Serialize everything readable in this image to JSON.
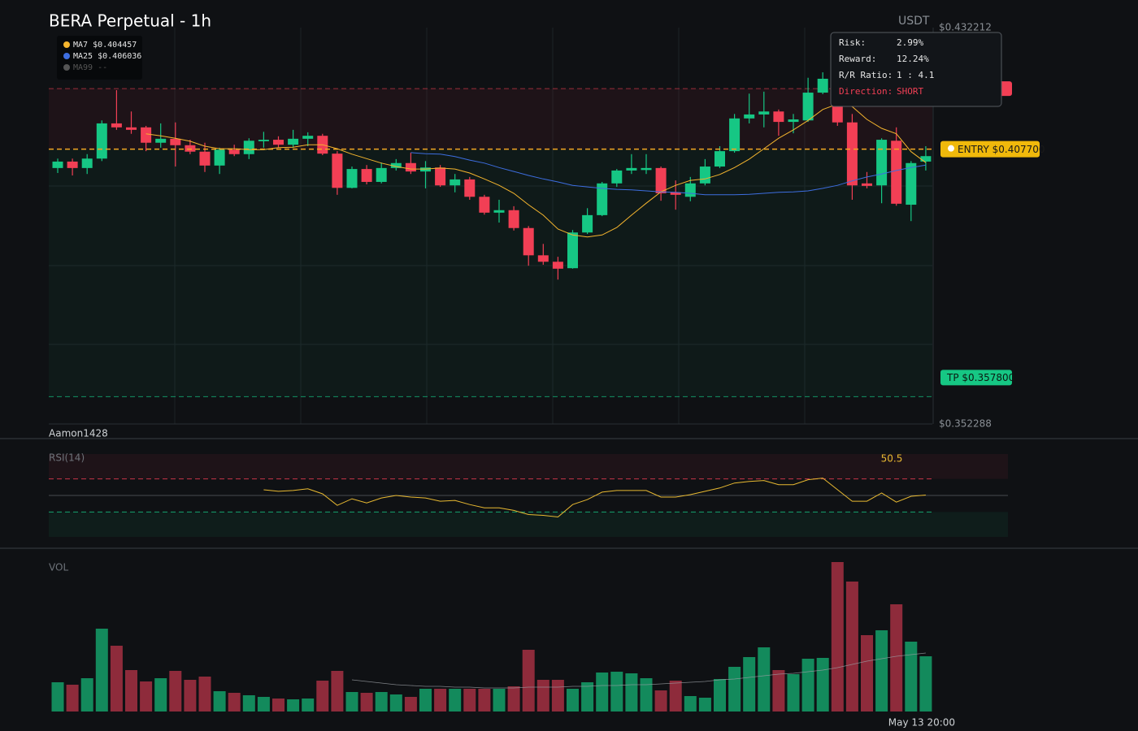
{
  "chart_data": [
    {
      "type": "candlestick",
      "title": "BERA Perpetual - 1h",
      "unit": "USDT",
      "watermark": "Aamon1428",
      "ylim": [
        0.352288,
        0.432212
      ],
      "yticks": [
        {
          "value": 0.432212,
          "label": "$0.432212"
        },
        {
          "value": 0.352288,
          "label": "$0.352288"
        }
      ],
      "up_color": "#16c784",
      "down_color": "#f23f55",
      "ohlc": [
        [
          0.4039,
          0.4058,
          0.4029,
          0.4052
        ],
        [
          0.4052,
          0.4058,
          0.4024,
          0.4039
        ],
        [
          0.4039,
          0.4067,
          0.4027,
          0.4058
        ],
        [
          0.4058,
          0.4135,
          0.4053,
          0.4129
        ],
        [
          0.4129,
          0.4196,
          0.4116,
          0.4121
        ],
        [
          0.4121,
          0.4153,
          0.4108,
          0.4116
        ],
        [
          0.4121,
          0.4124,
          0.4073,
          0.409
        ],
        [
          0.409,
          0.4129,
          0.408,
          0.4098
        ],
        [
          0.4098,
          0.4131,
          0.4042,
          0.4085
        ],
        [
          0.4085,
          0.4096,
          0.4067,
          0.4072
        ],
        [
          0.4072,
          0.409,
          0.4031,
          0.4044
        ],
        [
          0.4044,
          0.408,
          0.4027,
          0.4076
        ],
        [
          0.4076,
          0.4086,
          0.4063,
          0.4067
        ],
        [
          0.4067,
          0.4099,
          0.4057,
          0.4094
        ],
        [
          0.4093,
          0.4112,
          0.408,
          0.4096
        ],
        [
          0.4096,
          0.4103,
          0.408,
          0.4086
        ],
        [
          0.4086,
          0.4116,
          0.408,
          0.4098
        ],
        [
          0.4098,
          0.4111,
          0.4083,
          0.4104
        ],
        [
          0.4104,
          0.4108,
          0.4065,
          0.4068
        ],
        [
          0.4068,
          0.4073,
          0.3985,
          0.3999
        ],
        [
          0.3999,
          0.4042,
          0.3998,
          0.4037
        ],
        [
          0.4037,
          0.4045,
          0.4006,
          0.4011
        ],
        [
          0.4011,
          0.405,
          0.4008,
          0.4039
        ],
        [
          0.4039,
          0.4057,
          0.4034,
          0.4049
        ],
        [
          0.4049,
          0.407,
          0.4027,
          0.4032
        ],
        [
          0.4032,
          0.4053,
          0.3998,
          0.404
        ],
        [
          0.404,
          0.4045,
          0.4001,
          0.4004
        ],
        [
          0.4004,
          0.4027,
          0.399,
          0.4016
        ],
        [
          0.4016,
          0.4021,
          0.3975,
          0.3981
        ],
        [
          0.3981,
          0.3985,
          0.3945,
          0.3949
        ],
        [
          0.3949,
          0.3975,
          0.3929,
          0.3954
        ],
        [
          0.3954,
          0.3962,
          0.3913,
          0.3918
        ],
        [
          0.3918,
          0.3922,
          0.3842,
          0.3863
        ],
        [
          0.3863,
          0.3886,
          0.3844,
          0.385
        ],
        [
          0.385,
          0.386,
          0.3814,
          0.3836
        ],
        [
          0.3837,
          0.3914,
          0.3836,
          0.3909
        ],
        [
          0.3909,
          0.3958,
          0.3906,
          0.3944
        ],
        [
          0.3944,
          0.4011,
          0.3942,
          0.4008
        ],
        [
          0.4008,
          0.4037,
          0.4001,
          0.4034
        ],
        [
          0.4034,
          0.4067,
          0.4027,
          0.4039
        ],
        [
          0.4035,
          0.4067,
          0.4027,
          0.4039
        ],
        [
          0.4039,
          0.4042,
          0.3973,
          0.3988
        ],
        [
          0.399,
          0.4014,
          0.3955,
          0.3985
        ],
        [
          0.3981,
          0.4021,
          0.3972,
          0.4008
        ],
        [
          0.4008,
          0.4057,
          0.4004,
          0.4042
        ],
        [
          0.4042,
          0.4083,
          0.4039,
          0.4073
        ],
        [
          0.4073,
          0.4148,
          0.407,
          0.4139
        ],
        [
          0.4139,
          0.4189,
          0.4129,
          0.4147
        ],
        [
          0.4147,
          0.4193,
          0.4121,
          0.4153
        ],
        [
          0.4153,
          0.4157,
          0.4104,
          0.4132
        ],
        [
          0.4132,
          0.4148,
          0.4109,
          0.4137
        ],
        [
          0.4135,
          0.4221,
          0.4132,
          0.4191
        ],
        [
          0.4191,
          0.4232,
          0.4188,
          0.4219
        ],
        [
          0.4206,
          0.4222,
          0.4124,
          0.4131
        ],
        [
          0.4131,
          0.4148,
          0.3975,
          0.4004
        ],
        [
          0.4008,
          0.4031,
          0.3998,
          0.4003
        ],
        [
          0.4004,
          0.4099,
          0.3968,
          0.4096
        ],
        [
          0.4094,
          0.4121,
          0.3963,
          0.3967
        ],
        [
          0.3965,
          0.4053,
          0.3932,
          0.4049
        ],
        [
          0.4052,
          0.4083,
          0.4034,
          0.4063
        ]
      ],
      "moving_averages": [
        {
          "name": "MA7",
          "label": "$0.404457",
          "color": "#f5b52e",
          "values": [
            null,
            null,
            null,
            null,
            null,
            null,
            0.4108,
            0.4104,
            0.4099,
            0.4093,
            0.4083,
            0.4078,
            0.4078,
            0.4076,
            0.4076,
            0.408,
            0.4081,
            0.4086,
            0.4086,
            0.4078,
            0.4067,
            0.4058,
            0.4049,
            0.4042,
            0.4037,
            0.4037,
            0.4039,
            0.4037,
            0.4029,
            0.4017,
            0.4004,
            0.3988,
            0.3965,
            0.3944,
            0.3916,
            0.3904,
            0.39,
            0.3904,
            0.3919,
            0.3944,
            0.3968,
            0.3991,
            0.4004,
            0.4014,
            0.4017,
            0.4026,
            0.404,
            0.4057,
            0.4078,
            0.4099,
            0.4116,
            0.4135,
            0.4157,
            0.4168,
            0.4163,
            0.4137,
            0.4119,
            0.4108,
            0.4072,
            0.405
          ]
        },
        {
          "name": "MA25",
          "label": "$0.406036",
          "color": "#3d6ee0",
          "values": [
            null,
            null,
            null,
            null,
            null,
            null,
            null,
            null,
            null,
            null,
            null,
            null,
            null,
            null,
            null,
            null,
            null,
            null,
            null,
            null,
            null,
            null,
            null,
            null,
            0.407,
            0.4068,
            0.4067,
            0.4062,
            0.4055,
            0.4049,
            0.404,
            0.4032,
            0.4024,
            0.4017,
            0.4011,
            0.4004,
            0.4001,
            0.3998,
            0.3996,
            0.3995,
            0.3993,
            0.3991,
            0.399,
            0.3988,
            0.3985,
            0.3985,
            0.3985,
            0.3986,
            0.3988,
            0.399,
            0.3991,
            0.3993,
            0.3998,
            0.4004,
            0.4013,
            0.4021,
            0.4027,
            0.4034,
            0.404,
            0.4045
          ]
        },
        {
          "name": "MA99",
          "label": "--",
          "color": "#555555"
        }
      ],
      "entry": {
        "value": 0.4077,
        "label": "ENTRY $0.407700",
        "color": "#f0b90b"
      },
      "take_profit": {
        "value": 0.3578,
        "label": "TP $0.357800",
        "color": "#16c784"
      },
      "stop_loss": {
        "value": 0.4199,
        "color": "#f23f55"
      },
      "trade_info": [
        {
          "name": "Risk:",
          "value": "2.99%"
        },
        {
          "name": "Reward:",
          "value": "12.24%"
        },
        {
          "name": "R/R Ratio:",
          "value": "1 : 4.1"
        },
        {
          "name": "Direction:",
          "value": "SHORT"
        }
      ]
    },
    {
      "type": "line",
      "title": "RSI(14)",
      "ylim": [
        0,
        100
      ],
      "levels": [
        70,
        50,
        30
      ],
      "color": "#e8b931",
      "values": [
        null,
        null,
        null,
        null,
        null,
        null,
        null,
        null,
        null,
        null,
        null,
        null,
        null,
        null,
        56.9,
        55,
        56,
        58,
        52,
        38,
        46,
        41,
        47,
        50,
        48,
        47,
        43,
        44,
        39,
        35,
        35,
        32,
        27,
        26,
        24,
        39,
        45,
        54,
        56,
        56,
        56,
        48,
        48,
        51,
        55,
        59,
        65,
        67,
        68,
        63,
        63,
        69,
        71,
        57,
        43,
        43,
        53,
        42,
        49,
        50.5
      ]
    },
    {
      "type": "bar",
      "title": "VOL",
      "ylim": [
        0,
        184
      ],
      "up_color": "#138a5c",
      "down_color": "#8e2b3b",
      "categories": [
        null,
        null,
        null,
        null,
        null,
        null,
        null,
        null,
        null,
        null,
        null,
        null,
        null,
        null,
        null,
        null,
        null,
        null,
        null,
        null,
        null,
        null,
        null,
        null,
        null,
        null,
        null,
        null,
        null,
        null,
        null,
        null,
        null,
        null,
        null,
        null,
        null,
        null,
        null,
        null,
        null,
        null,
        null,
        null,
        null,
        null,
        null,
        null,
        null,
        null,
        null,
        null,
        null,
        null,
        null,
        null,
        null,
        null,
        null,
        "May 13 20:00"
      ],
      "values": [
        36,
        33,
        41,
        102,
        81,
        51,
        37,
        41,
        50,
        39,
        43,
        25,
        23,
        20,
        18,
        16,
        15,
        16,
        38,
        50,
        24,
        23,
        24,
        21,
        18,
        28,
        28,
        28,
        28,
        28,
        28,
        31,
        76,
        39,
        39,
        28,
        36,
        48,
        49,
        47,
        41,
        26,
        38,
        19,
        17,
        40,
        55,
        67,
        79,
        51,
        46,
        65,
        66,
        184,
        160,
        94,
        100,
        132,
        86,
        68
      ],
      "ma_values": [
        null,
        null,
        null,
        null,
        null,
        null,
        null,
        null,
        null,
        null,
        null,
        null,
        null,
        null,
        null,
        null,
        null,
        null,
        null,
        null,
        39,
        37,
        35,
        33,
        32,
        31,
        31,
        30,
        30,
        29,
        29,
        29,
        30,
        30,
        30,
        31,
        31,
        32,
        32,
        33,
        33,
        34,
        35,
        36,
        37,
        39,
        40,
        42,
        44,
        46,
        47,
        49,
        51,
        54,
        58,
        62,
        65,
        68,
        70,
        72
      ]
    }
  ]
}
